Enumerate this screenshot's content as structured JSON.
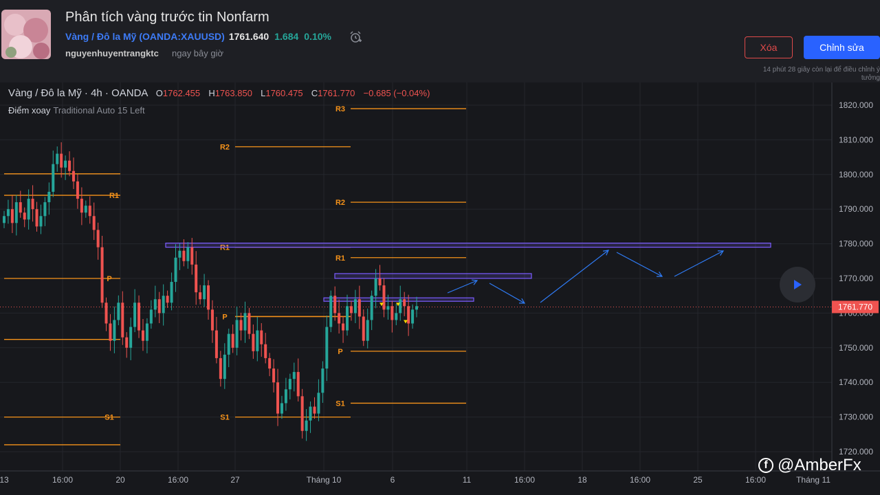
{
  "header": {
    "title": "Phân tích vàng trước tin Nonfarm",
    "symbol_name": "Vàng / Đô la Mỹ",
    "symbol_code": "OANDA:XAUUSD",
    "price": "1761.640",
    "change": "1.684",
    "change_percent": "0.10%",
    "author": "nguyenhuyentrangktc",
    "time": "ngay bây giờ",
    "delete_label": "Xóa",
    "edit_label": "Chỉnh sửa",
    "edit_note": "14 phút 28 giây còn lại để điều chỉnh ý tưởng"
  },
  "legend": {
    "symbol": "Vàng / Đô la Mỹ",
    "interval": "4h",
    "exchange": "OANDA",
    "o_label": "O",
    "o_value": "1762.455",
    "h_label": "H",
    "h_value": "1763.850",
    "l_label": "L",
    "l_value": "1760.475",
    "c_label": "C",
    "c_value": "1761.770",
    "change": "−0.685 (−0.04%)",
    "indicator": "Điểm xoay",
    "indicator_params": "Traditional Auto 15 Left"
  },
  "chart_data": {
    "type": "candlestick",
    "title": "",
    "y_axis_labels": [
      "1820.000",
      "1810.000",
      "1800.000",
      "1790.000",
      "1780.000",
      "1770.000",
      "1760.000",
      "1750.000",
      "1740.000",
      "1730.000",
      "1720.000"
    ],
    "ylim": [
      1718,
      1826
    ],
    "x_axis_labels": [
      "13",
      "16:00",
      "20",
      "16:00",
      "27",
      "Tháng 10",
      "6",
      "11",
      "16:00",
      "18",
      "16:00",
      "25",
      "16:00",
      "Tháng 11"
    ],
    "last_price_label": "1761.770",
    "pivot_labels": [
      "R3",
      "R2",
      "R1",
      "P",
      "S1"
    ],
    "pivot_groups": [
      {
        "levels": [
          {
            "label": "R1",
            "value": 1794
          },
          {
            "label": "P",
            "value": 1770
          },
          {
            "label": "S1",
            "value": 1730
          }
        ],
        "extra": [
          1800.2,
          1752.4,
          1722
        ]
      },
      {
        "levels": [
          {
            "label": "R2",
            "value": 1808
          },
          {
            "label": "R1",
            "value": 1779
          },
          {
            "label": "P",
            "value": 1759
          },
          {
            "label": "S1",
            "value": 1730
          }
        ]
      },
      {
        "levels": [
          {
            "label": "R3",
            "value": 1819
          },
          {
            "label": "R2",
            "value": 1792
          },
          {
            "label": "R1",
            "value": 1776
          },
          {
            "label": "P",
            "value": 1749
          },
          {
            "label": "S1",
            "value": 1734
          }
        ]
      }
    ],
    "colors": {
      "up": "#26a69a",
      "down": "#ef5350",
      "pivot": "#f7931a",
      "zone": "#7b5cff",
      "arrow": "#2f7bf5"
    }
  },
  "watermark": {
    "text": "@AmberFx"
  }
}
